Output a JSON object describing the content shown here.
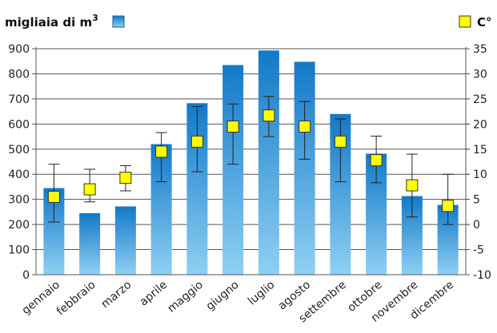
{
  "chart_data": {
    "type": "bar",
    "categories": [
      "gennaio",
      "febbraio",
      "marzo",
      "aprile",
      "maggio",
      "giugno",
      "luglio",
      "agosto",
      "settembre",
      "ottobre",
      "novembre",
      "dicembre"
    ],
    "series": [
      {
        "name": "migliaia di m3",
        "axis": "left",
        "type": "bar",
        "values": [
          345,
          245,
          272,
          520,
          683,
          835,
          893,
          848,
          640,
          482,
          313,
          278
        ]
      },
      {
        "name": "C°",
        "axis": "right",
        "type": "point_with_error",
        "values": [
          5.5,
          7,
          9.3,
          14.5,
          16.5,
          19.5,
          21.7,
          19.5,
          16.5,
          12.8,
          7.8,
          3.7
        ],
        "low": [
          0.5,
          4.5,
          6.7,
          8.5,
          10.5,
          12,
          17.5,
          13,
          8.5,
          8.3,
          1.5,
          0
        ],
        "high": [
          12,
          11,
          11.7,
          18.3,
          23.5,
          24,
          25.5,
          24.5,
          21,
          17.6,
          14,
          10
        ]
      }
    ],
    "left_axis": {
      "label": "migliaia di m",
      "label_sup": "3",
      "ylim": [
        0,
        900
      ],
      "ticks": [
        0,
        100,
        200,
        300,
        400,
        500,
        600,
        700,
        800,
        900
      ]
    },
    "right_axis": {
      "label": "C°",
      "ylim": [
        -10,
        35
      ],
      "ticks": [
        -10,
        -5,
        0,
        5,
        10,
        15,
        20,
        25,
        30,
        35
      ]
    },
    "grid": true,
    "colors": {
      "bar_top": "#1279c8",
      "bar_bottom": "#8fd0f3",
      "marker_fill": "#ffff00",
      "marker_stroke": "#333333",
      "grid": "#555555",
      "axis": "#555555"
    }
  }
}
